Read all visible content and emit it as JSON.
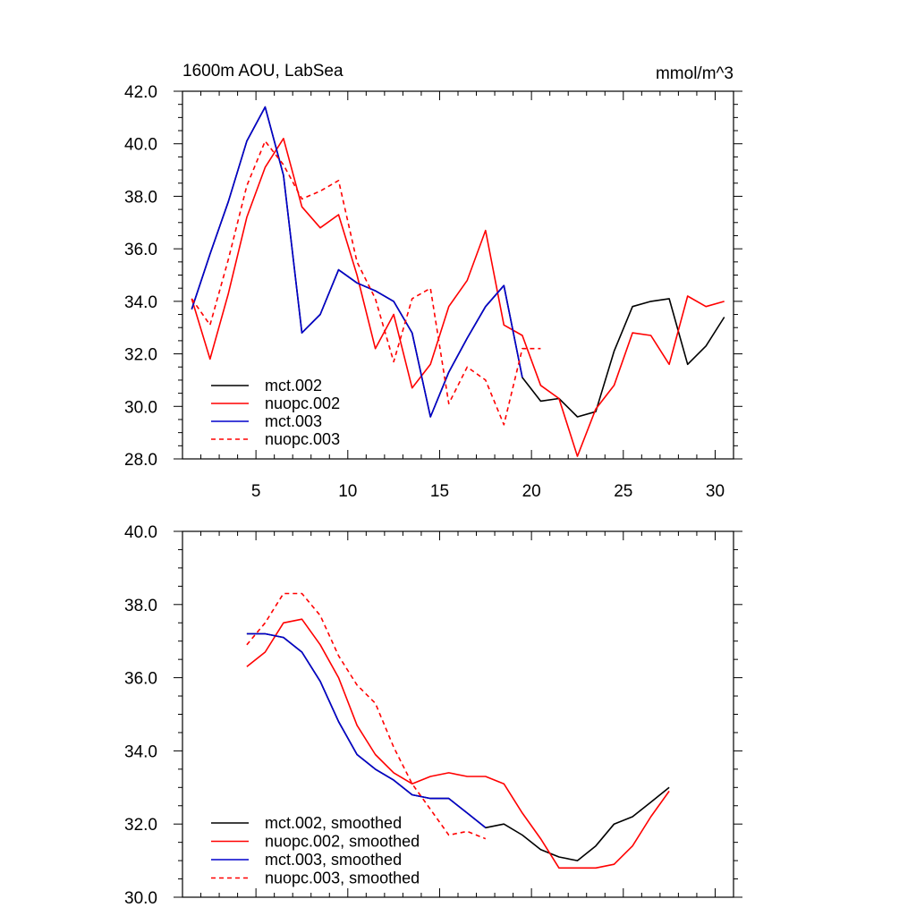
{
  "chart_data": [
    {
      "type": "line",
      "title": "1600m AOU, LabSea",
      "units": "mmol/m^3",
      "xlim": [
        1,
        31
      ],
      "ylim": [
        28,
        42
      ],
      "xticks": [
        5,
        10,
        15,
        20,
        25,
        30
      ],
      "yticks": [
        "28.0",
        "30.0",
        "32.0",
        "34.0",
        "36.0",
        "38.0",
        "40.0",
        "42.0"
      ],
      "legend_placement": "bottom-left",
      "series": [
        {
          "name": "mct.002",
          "color": "#000000",
          "dash": false,
          "x": [
            1.5,
            2.5,
            3.5,
            4.5,
            5.5,
            6.5,
            7.5,
            8.5,
            9.5,
            10.5,
            11.5,
            12.5,
            13.5,
            14.5,
            15.5,
            16.5,
            17.5,
            18.5,
            19.5,
            20.5,
            21.5,
            22.5,
            23.5,
            24.5,
            25.5,
            26.5,
            27.5,
            28.5,
            29.5,
            30.5
          ],
          "values": [
            33.7,
            35.8,
            37.8,
            40.1,
            41.4,
            38.8,
            32.8,
            33.5,
            35.2,
            34.7,
            34.4,
            34.0,
            32.8,
            29.6,
            31.3,
            32.6,
            33.8,
            34.6,
            31.1,
            30.2,
            30.3,
            29.6,
            29.8,
            32.1,
            33.8,
            34.0,
            34.1,
            31.6,
            32.3,
            33.4
          ]
        },
        {
          "name": "nuopc.002",
          "color": "#ff0000",
          "dash": false,
          "x": [
            1.5,
            2.5,
            3.5,
            4.5,
            5.5,
            6.5,
            7.5,
            8.5,
            9.5,
            10.5,
            11.5,
            12.5,
            13.5,
            14.5,
            15.5,
            16.5,
            17.5,
            18.5,
            19.5,
            20.5,
            21.5,
            22.5,
            23.5,
            24.5,
            25.5,
            26.5,
            27.5,
            28.5,
            29.5,
            30.5
          ],
          "values": [
            34.1,
            31.8,
            34.3,
            37.2,
            39.1,
            40.2,
            37.6,
            36.8,
            37.3,
            35.0,
            32.2,
            33.5,
            30.7,
            31.6,
            33.8,
            34.8,
            36.7,
            33.1,
            32.7,
            30.8,
            30.3,
            28.1,
            29.9,
            30.8,
            32.8,
            32.7,
            31.6,
            34.2,
            33.8,
            34.0
          ]
        },
        {
          "name": "mct.003",
          "color": "#0000cc",
          "dash": false,
          "x": [
            1.5,
            2.5,
            3.5,
            4.5,
            5.5,
            6.5,
            7.5,
            8.5,
            9.5,
            10.5,
            11.5,
            12.5,
            13.5,
            14.5,
            15.5,
            16.5,
            17.5,
            18.5,
            19.5
          ],
          "values": [
            33.7,
            35.8,
            37.8,
            40.1,
            41.4,
            38.8,
            32.8,
            33.5,
            35.2,
            34.7,
            34.4,
            34.0,
            32.8,
            29.6,
            31.3,
            32.6,
            33.8,
            34.6,
            31.1
          ]
        },
        {
          "name": "nuopc.003",
          "color": "#ff0000",
          "dash": true,
          "x": [
            1.5,
            2.5,
            3.5,
            4.5,
            5.5,
            6.5,
            7.5,
            8.5,
            9.5,
            10.5,
            11.5,
            12.5,
            13.5,
            14.5,
            15.5,
            16.5,
            17.5,
            18.5,
            19.5,
            20.5
          ],
          "values": [
            34.1,
            33.1,
            35.6,
            38.4,
            40.1,
            39.2,
            37.9,
            38.2,
            38.6,
            35.5,
            34.1,
            31.7,
            34.1,
            34.5,
            30.1,
            31.5,
            31.0,
            29.3,
            32.2,
            32.2
          ]
        }
      ]
    },
    {
      "type": "line",
      "xlim": [
        1,
        31
      ],
      "ylim": [
        30,
        40
      ],
      "xticks": [
        5,
        10,
        15,
        20,
        25,
        30
      ],
      "xtick_labels_shown": false,
      "yticks": [
        "30.0",
        "32.0",
        "34.0",
        "36.0",
        "38.0",
        "40.0"
      ],
      "legend_placement": "bottom-left",
      "series": [
        {
          "name": "mct.002, smoothed",
          "color": "#000000",
          "dash": false,
          "x": [
            4.5,
            5.5,
            6.5,
            7.5,
            8.5,
            9.5,
            10.5,
            11.5,
            12.5,
            13.5,
            14.5,
            15.5,
            16.5,
            17.5,
            18.5,
            19.5,
            20.5,
            21.5,
            22.5,
            23.5,
            24.5,
            25.5,
            26.5,
            27.5
          ],
          "values": [
            37.2,
            37.2,
            37.1,
            36.7,
            35.9,
            34.8,
            33.9,
            33.5,
            33.2,
            32.8,
            32.7,
            32.7,
            32.3,
            31.9,
            32.0,
            31.7,
            31.3,
            31.1,
            31.0,
            31.4,
            32.0,
            32.2,
            32.6,
            33.0
          ]
        },
        {
          "name": "nuopc.002, smoothed",
          "color": "#ff0000",
          "dash": false,
          "x": [
            4.5,
            5.5,
            6.5,
            7.5,
            8.5,
            9.5,
            10.5,
            11.5,
            12.5,
            13.5,
            14.5,
            15.5,
            16.5,
            17.5,
            18.5,
            19.5,
            20.5,
            21.5,
            22.5,
            23.5,
            24.5,
            25.5,
            26.5,
            27.5
          ],
          "values": [
            36.3,
            36.7,
            37.5,
            37.6,
            36.9,
            36.0,
            34.7,
            33.9,
            33.4,
            33.1,
            33.3,
            33.4,
            33.3,
            33.3,
            33.1,
            32.3,
            31.6,
            30.8,
            30.8,
            30.8,
            30.9,
            31.4,
            32.2,
            32.9
          ]
        },
        {
          "name": "mct.003, smoothed",
          "color": "#0000cc",
          "dash": false,
          "x": [
            4.5,
            5.5,
            6.5,
            7.5,
            8.5,
            9.5,
            10.5,
            11.5,
            12.5,
            13.5,
            14.5,
            15.5,
            16.5,
            17.5
          ],
          "values": [
            37.2,
            37.2,
            37.1,
            36.7,
            35.9,
            34.8,
            33.9,
            33.5,
            33.2,
            32.8,
            32.7,
            32.7,
            32.3,
            31.9
          ]
        },
        {
          "name": "nuopc.003, smoothed",
          "color": "#ff0000",
          "dash": true,
          "x": [
            4.5,
            5.5,
            6.5,
            7.5,
            8.5,
            9.5,
            10.5,
            11.5,
            12.5,
            13.5,
            14.5,
            15.5,
            16.5,
            17.5
          ],
          "values": [
            36.9,
            37.5,
            38.3,
            38.3,
            37.7,
            36.6,
            35.8,
            35.3,
            34.1,
            33.1,
            32.4,
            31.7,
            31.8,
            31.6
          ]
        }
      ]
    }
  ]
}
